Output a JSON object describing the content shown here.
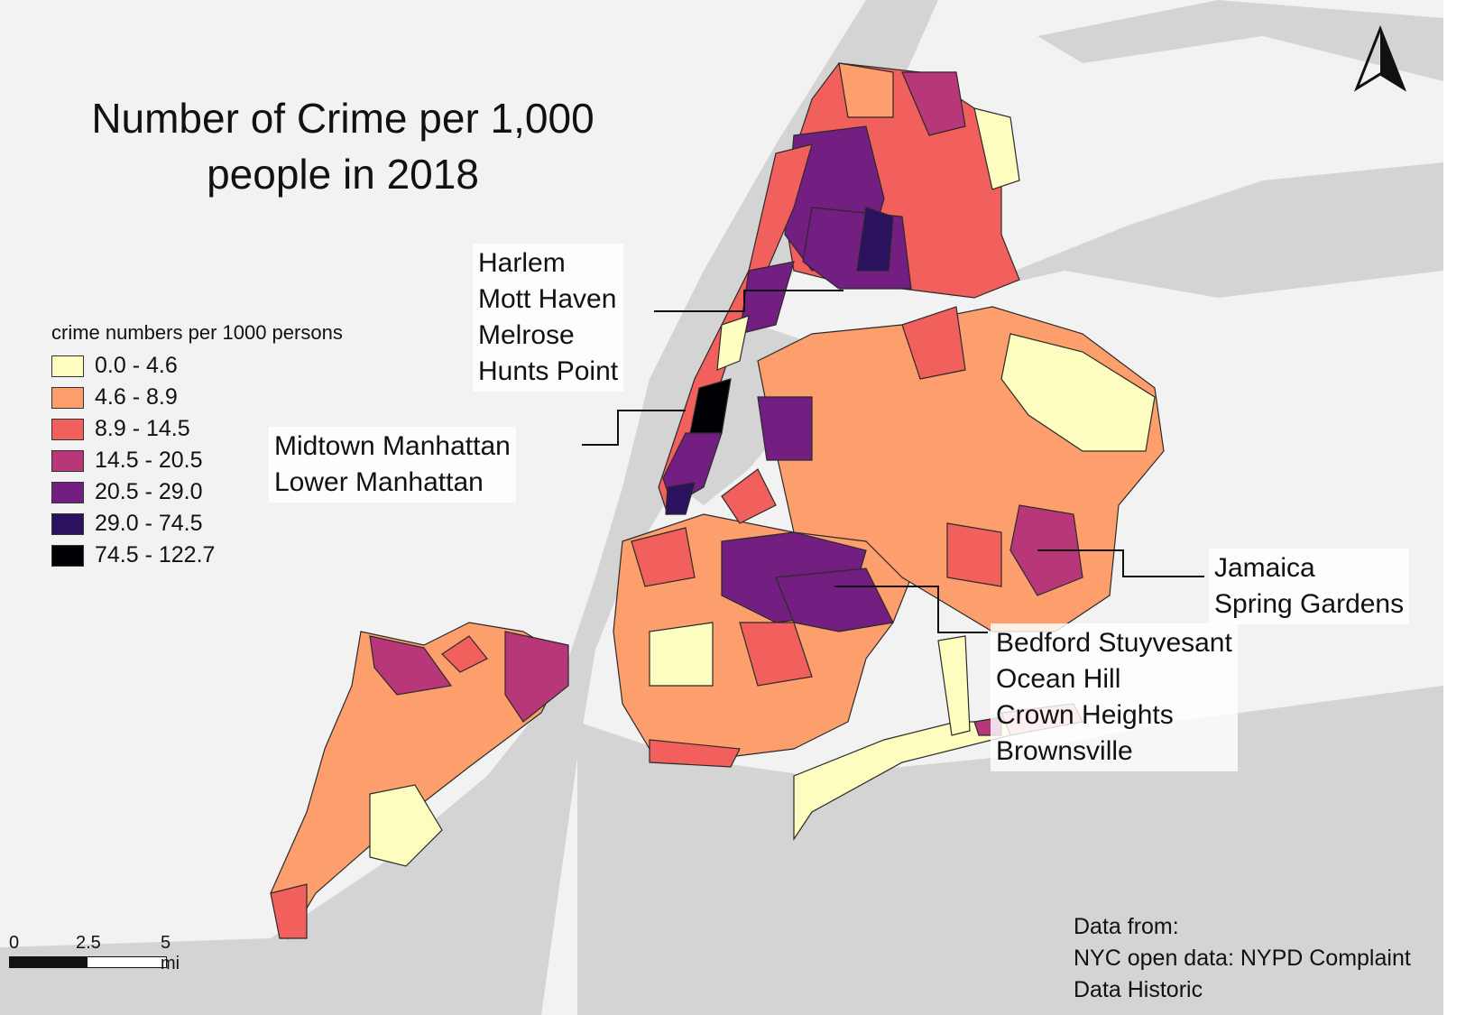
{
  "title_line1": "Number of Crime per 1,000",
  "title_line2": "people in 2018",
  "legend": {
    "title": "crime numbers per 1000 persons",
    "items": [
      {
        "label": "0.0 - 4.6",
        "color": "#fcfdbf"
      },
      {
        "label": "4.6 - 8.9",
        "color": "#fd9f6c"
      },
      {
        "label": "8.9 - 14.5",
        "color": "#f1605d"
      },
      {
        "label": "14.5 - 20.5",
        "color": "#b73779"
      },
      {
        "label": "20.5 - 29.0",
        "color": "#721f81"
      },
      {
        "label": "29.0 - 74.5",
        "color": "#2c115f"
      },
      {
        "label": "74.5 - 122.7",
        "color": "#000004"
      }
    ]
  },
  "callouts": {
    "bronx": [
      "Harlem",
      "Mott Haven",
      "Melrose",
      "Hunts Point"
    ],
    "manhattan": [
      "Midtown Manhattan",
      "Lower Manhattan"
    ],
    "queens": [
      "Jamaica",
      "Spring Gardens"
    ],
    "brooklyn": [
      "Bedford Stuyvesant",
      "Ocean Hill",
      "Crown Heights",
      "Brownsville"
    ]
  },
  "scale": {
    "labels": [
      "0",
      "2.5",
      "5 mi"
    ]
  },
  "source": {
    "lines": [
      "Data from:",
      "NYC open data: NYPD Complaint",
      "Data Historic"
    ]
  },
  "colors": {
    "water": "#d6d6d6",
    "land": "#f3f3f3",
    "border": "#2a2a2a"
  }
}
